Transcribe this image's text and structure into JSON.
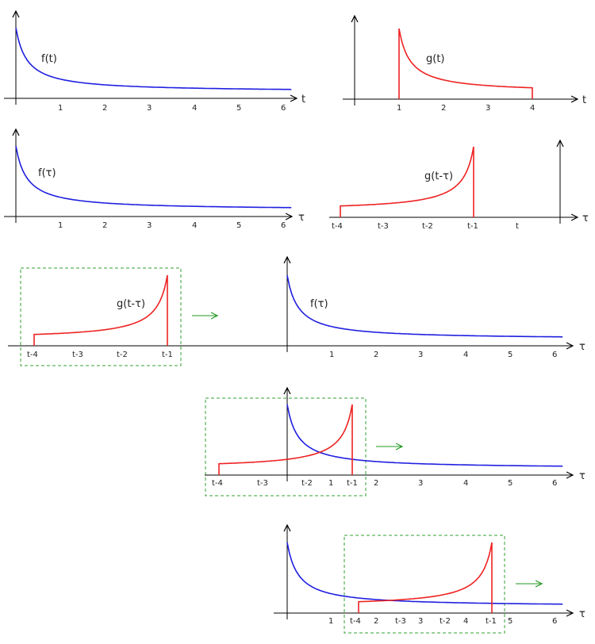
{
  "colors": {
    "f": "#2020e0",
    "g": "#ee2222",
    "axis": "#000000",
    "box": "#33a033",
    "arrow": "#229922"
  },
  "f_decay": {
    "a": 1.5,
    "b": 4,
    "c": 0.15
  },
  "g_shape": {
    "support": [
      1,
      4
    ],
    "a": 1.5,
    "b": 4,
    "c": 0.15,
    "peak_at": 1
  },
  "panels": [
    {
      "id": "p1",
      "fn": "f",
      "label": "f(t)",
      "axis": "t",
      "ticks": [
        "1",
        "2",
        "3",
        "4",
        "5",
        "6"
      ]
    },
    {
      "id": "p2",
      "fn": "g",
      "label": "g(t)",
      "axis": "t",
      "ticks": [
        "1",
        "2",
        "3",
        "4"
      ]
    },
    {
      "id": "p3",
      "fn": "f",
      "label": "f(τ)",
      "axis": "τ",
      "ticks": [
        "1",
        "2",
        "3",
        "4",
        "5",
        "6"
      ]
    },
    {
      "id": "p4",
      "fn": "g_flipped",
      "label": "g(t-τ)",
      "axis": "τ",
      "ticks": [
        "t-4",
        "t-3",
        "t-2",
        "t-1",
        "t"
      ]
    },
    {
      "id": "p5",
      "fn": "g_flipped",
      "label": "g(t-τ)",
      "ticks": [
        "t-4",
        "t-3",
        "t-2",
        "t-1"
      ]
    },
    {
      "id": "p6",
      "fn": "f",
      "label": "f(τ)",
      "axis": "τ",
      "ticks": [
        "1",
        "2",
        "3",
        "4",
        "5",
        "6"
      ]
    },
    {
      "id": "p7",
      "fn": "f+g_flipped",
      "axis": "τ",
      "ticks": [
        "t-4",
        "t-3",
        "t-2",
        "1",
        "t-1",
        "2",
        "3",
        "4",
        "5",
        "6"
      ]
    },
    {
      "id": "p8",
      "fn": "f+g_flipped",
      "axis": "τ",
      "ticks": [
        "1",
        "t-4",
        "2",
        "t-3",
        "3",
        "t-2",
        "4",
        "t-1",
        "5",
        "6"
      ]
    }
  ]
}
